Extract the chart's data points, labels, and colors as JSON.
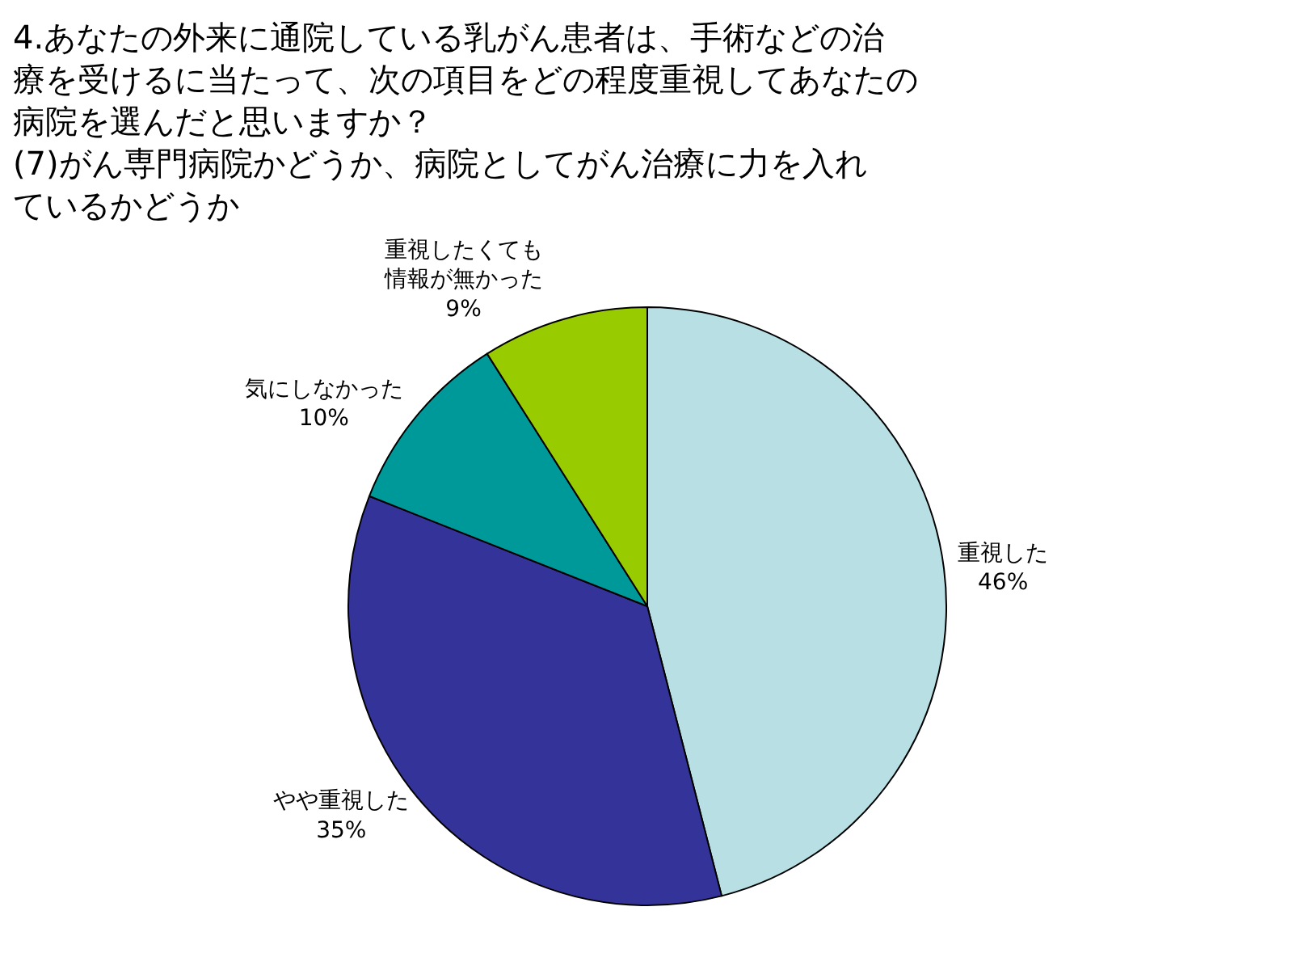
{
  "chart_data": {
    "type": "pie",
    "title": "4.あなたの外来に通院している乳がん患者は、手術などの治療を受けるに当たって、次の項目をどの程度重視してあなたの病院を選んだと思いますか？\n(7)がん専門病院かどうか、病院としてがん治療に力を入れているかどうか",
    "categories": [
      "重視した",
      "やや重視した",
      "気にしなかった",
      "重視したくても情報が無かった"
    ],
    "values": [
      46,
      35,
      10,
      9
    ],
    "value_labels": [
      "46%",
      "35%",
      "10%",
      "9%"
    ],
    "colors": [
      "#b8e0e4",
      "#333399",
      "#009999",
      "#99cc00"
    ],
    "legend": false
  }
}
